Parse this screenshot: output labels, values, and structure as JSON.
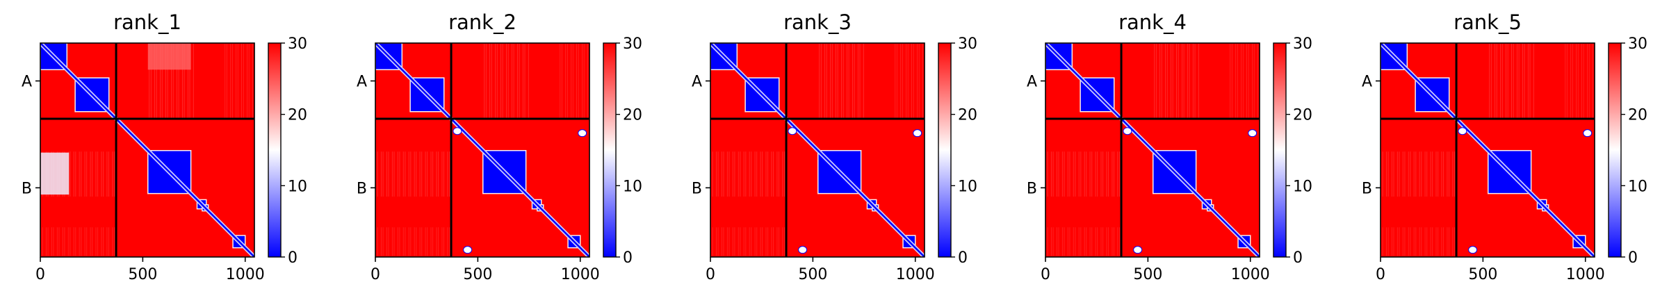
{
  "colors": {
    "low": "#0000ff",
    "mid": "#ffffff",
    "high": "#ff0000",
    "chain_line": "#000000"
  },
  "colorbar": {
    "min": 0,
    "max": 30,
    "ticks": [
      "0",
      "10",
      "20",
      "30"
    ],
    "tick_values": [
      0,
      10,
      20,
      30
    ]
  },
  "chart_data": [
    {
      "type": "heatmap",
      "title": "rank_1",
      "xlim": [
        0,
        1045
      ],
      "ylim": [
        1045,
        0
      ],
      "x_ticks": [
        "0",
        "500",
        "1000"
      ],
      "x_tick_values": [
        0,
        500,
        1000
      ],
      "y_ticks": [
        "A",
        "B"
      ],
      "y_tick_values": [
        185,
        707
      ],
      "chain_boundary": 370,
      "chains": [
        {
          "name": "A",
          "range": [
            0,
            370
          ]
        },
        {
          "name": "B",
          "range": [
            370,
            1045
          ]
        }
      ],
      "low_error_domains": [
        [
          0,
          130
        ],
        [
          170,
          335
        ],
        [
          525,
          735
        ],
        [
          765,
          810
        ],
        [
          790,
          820
        ],
        [
          940,
          1000
        ]
      ],
      "features": {
        "b_to_a_patch": {
          "rows": [
            535,
            740
          ],
          "cols": [
            0,
            140
          ],
          "level": 14
        },
        "a_to_b_patch": {
          "rows": [
            0,
            130
          ],
          "cols": [
            525,
            735
          ],
          "level": 24
        },
        "bright_spots": [],
        "stripe_band": {
          "rows": [
            530,
            750
          ],
          "cols": [
            0,
            370
          ],
          "level": 25
        }
      }
    },
    {
      "type": "heatmap",
      "title": "rank_2",
      "xlim": [
        0,
        1045
      ],
      "ylim": [
        1045,
        0
      ],
      "x_ticks": [
        "0",
        "500",
        "1000"
      ],
      "x_tick_values": [
        0,
        500,
        1000
      ],
      "y_ticks": [
        "A",
        "B"
      ],
      "y_tick_values": [
        185,
        707
      ],
      "chain_boundary": 370,
      "chains": [
        {
          "name": "A",
          "range": [
            0,
            370
          ]
        },
        {
          "name": "B",
          "range": [
            370,
            1045
          ]
        }
      ],
      "low_error_domains": [
        [
          0,
          130
        ],
        [
          170,
          335
        ],
        [
          525,
          735
        ],
        [
          765,
          810
        ],
        [
          790,
          820
        ],
        [
          940,
          1000
        ]
      ],
      "features": {
        "b_to_a_patch": null,
        "a_to_b_patch": null,
        "bright_spots": [
          [
            400,
            430
          ],
          [
            1010,
            440
          ],
          [
            450,
            1010
          ]
        ],
        "stripe_band": {
          "rows": [
            530,
            750
          ],
          "cols": [
            0,
            370
          ],
          "level": 25
        }
      }
    },
    {
      "type": "heatmap",
      "title": "rank_3",
      "xlim": [
        0,
        1045
      ],
      "ylim": [
        1045,
        0
      ],
      "x_ticks": [
        "0",
        "500",
        "1000"
      ],
      "x_tick_values": [
        0,
        500,
        1000
      ],
      "y_ticks": [
        "A",
        "B"
      ],
      "y_tick_values": [
        185,
        707
      ],
      "chain_boundary": 370,
      "chains": [
        {
          "name": "A",
          "range": [
            0,
            370
          ]
        },
        {
          "name": "B",
          "range": [
            370,
            1045
          ]
        }
      ],
      "low_error_domains": [
        [
          0,
          130
        ],
        [
          170,
          335
        ],
        [
          525,
          735
        ],
        [
          765,
          810
        ],
        [
          790,
          820
        ],
        [
          940,
          1000
        ]
      ],
      "features": {
        "b_to_a_patch": null,
        "a_to_b_patch": null,
        "bright_spots": [
          [
            400,
            430
          ],
          [
            1010,
            440
          ],
          [
            450,
            1010
          ]
        ],
        "stripe_band": {
          "rows": [
            530,
            750
          ],
          "cols": [
            0,
            370
          ],
          "level": 25
        }
      }
    },
    {
      "type": "heatmap",
      "title": "rank_4",
      "xlim": [
        0,
        1045
      ],
      "ylim": [
        1045,
        0
      ],
      "x_ticks": [
        "0",
        "500",
        "1000"
      ],
      "x_tick_values": [
        0,
        500,
        1000
      ],
      "y_ticks": [
        "A",
        "B"
      ],
      "y_tick_values": [
        185,
        707
      ],
      "chain_boundary": 370,
      "chains": [
        {
          "name": "A",
          "range": [
            0,
            370
          ]
        },
        {
          "name": "B",
          "range": [
            370,
            1045
          ]
        }
      ],
      "low_error_domains": [
        [
          0,
          130
        ],
        [
          170,
          335
        ],
        [
          525,
          735
        ],
        [
          765,
          810
        ],
        [
          790,
          820
        ],
        [
          940,
          1000
        ]
      ],
      "features": {
        "b_to_a_patch": null,
        "a_to_b_patch": null,
        "bright_spots": [
          [
            400,
            430
          ],
          [
            1010,
            440
          ],
          [
            450,
            1010
          ]
        ],
        "stripe_band": {
          "rows": [
            530,
            750
          ],
          "cols": [
            0,
            370
          ],
          "level": 25
        }
      }
    },
    {
      "type": "heatmap",
      "title": "rank_5",
      "xlim": [
        0,
        1045
      ],
      "ylim": [
        1045,
        0
      ],
      "x_ticks": [
        "0",
        "500",
        "1000"
      ],
      "x_tick_values": [
        0,
        500,
        1000
      ],
      "y_ticks": [
        "A",
        "B"
      ],
      "y_tick_values": [
        185,
        707
      ],
      "chain_boundary": 370,
      "chains": [
        {
          "name": "A",
          "range": [
            0,
            370
          ]
        },
        {
          "name": "B",
          "range": [
            370,
            1045
          ]
        }
      ],
      "low_error_domains": [
        [
          0,
          130
        ],
        [
          170,
          335
        ],
        [
          525,
          735
        ],
        [
          765,
          810
        ],
        [
          790,
          820
        ],
        [
          940,
          1000
        ]
      ],
      "features": {
        "b_to_a_patch": null,
        "a_to_b_patch": null,
        "bright_spots": [
          [
            400,
            430
          ],
          [
            1010,
            440
          ],
          [
            450,
            1010
          ]
        ],
        "stripe_band": {
          "rows": [
            530,
            750
          ],
          "cols": [
            0,
            370
          ],
          "level": 25
        }
      }
    }
  ]
}
